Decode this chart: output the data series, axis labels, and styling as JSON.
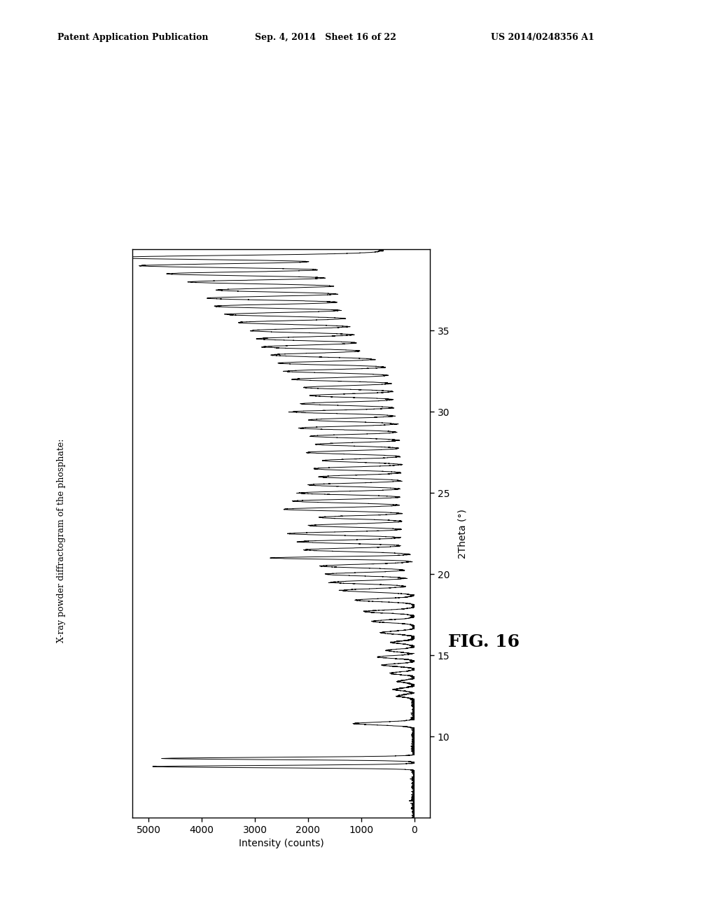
{
  "header_left": "Patent Application Publication",
  "header_center": "Sep. 4, 2014   Sheet 16 of 22",
  "header_right": "US 2014/0248356 A1",
  "fig_label": "FIG. 16",
  "ylabel_rotated": "X-ray powder diffractogram of the phosphate:",
  "xlabel": "2Theta (°)",
  "intensity_label": "Intensity (counts)",
  "background_color": "#ffffff",
  "line_color": "#000000"
}
